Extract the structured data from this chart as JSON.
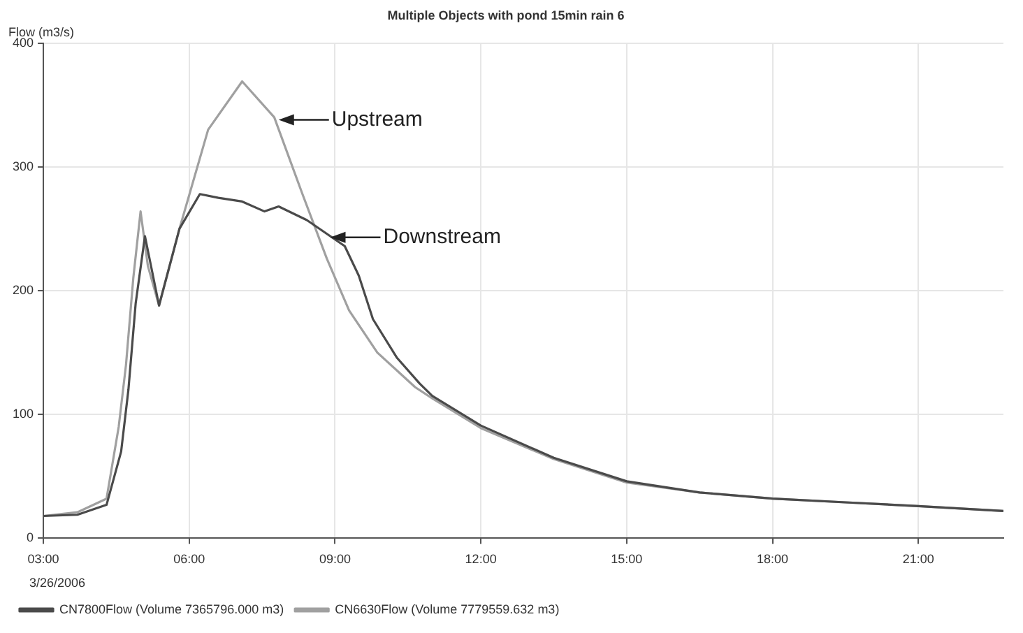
{
  "chart_data": {
    "type": "line",
    "title": "Multiple Objects with pond 15min rain 6",
    "ylabel": "Flow (m3/s)",
    "xlim": [
      3,
      22.75
    ],
    "xticks": [
      {
        "value": 3,
        "label": "03:00"
      },
      {
        "value": 6,
        "label": "06:00"
      },
      {
        "value": 9,
        "label": "09:00"
      },
      {
        "value": 12,
        "label": "12:00"
      },
      {
        "value": 15,
        "label": "15:00"
      },
      {
        "value": 18,
        "label": "18:00"
      },
      {
        "value": 21,
        "label": "21:00"
      }
    ],
    "ylim": [
      0,
      400
    ],
    "yticks": [
      0,
      100,
      200,
      300,
      400
    ],
    "grid": true,
    "legend": "bottom",
    "marker": "none",
    "line_style": "solid",
    "series": [
      {
        "name": "CN7800Flow (Volume 7365796.000 m3)",
        "color": "#4a4a4a",
        "x": [
          3,
          3.7,
          4.3,
          4.6,
          4.75,
          4.9,
          5.09,
          5.38,
          5.8,
          6.22,
          6.6,
          7.09,
          7.55,
          7.84,
          8.42,
          9.2,
          9.49,
          9.78,
          10.27,
          10.74,
          11,
          12,
          13.5,
          15,
          16.5,
          18,
          19.5,
          21,
          22.75
        ],
        "values": [
          18,
          19,
          27,
          70,
          120,
          190,
          244,
          188,
          250,
          278,
          275,
          272,
          264,
          268,
          257,
          236,
          212,
          177,
          146,
          125,
          115,
          91,
          65,
          46,
          37,
          32,
          29,
          26,
          22
        ]
      },
      {
        "name": "CN6630Flow (Volume 7779559.632 m3)",
        "color": "#a0a0a0",
        "x": [
          3,
          3.7,
          4.3,
          4.55,
          4.7,
          4.85,
          5.0,
          5.15,
          5.38,
          5.8,
          6.39,
          7.09,
          7.75,
          8.33,
          8.83,
          9.29,
          9.87,
          10.65,
          11,
          12,
          13.5,
          15,
          16.5,
          18,
          19.5,
          21,
          22.75
        ],
        "values": [
          18,
          21,
          32,
          90,
          140,
          210,
          264,
          220,
          188,
          250,
          330,
          369,
          340,
          278,
          226,
          184,
          150,
          122,
          113,
          89,
          64,
          45,
          37,
          32,
          29,
          26,
          22
        ]
      }
    ],
    "annotations": [
      {
        "text": "Upstream",
        "x": 7.84,
        "y": 338
      },
      {
        "text": "Downstream",
        "x": 8.9,
        "y": 243
      },
      "3/26/2006"
    ]
  }
}
